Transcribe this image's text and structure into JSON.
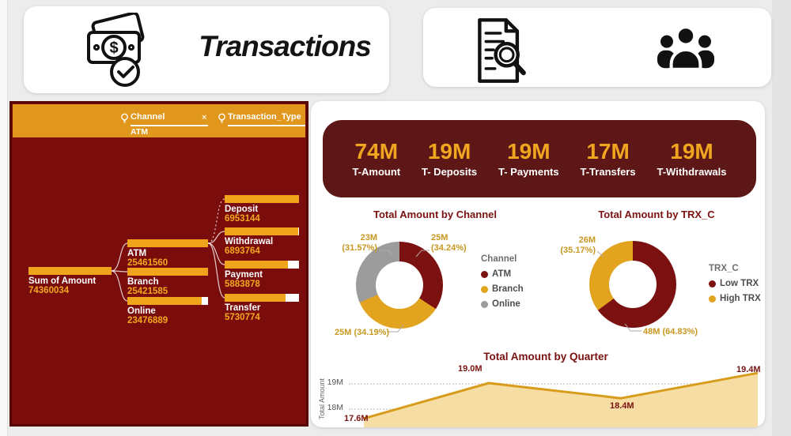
{
  "header": {
    "title": "Transactions"
  },
  "tree": {
    "levels": [
      {
        "label": "Channel",
        "selected": "ATM",
        "clear_label": "×"
      },
      {
        "label": "Transaction_Type"
      }
    ],
    "root": {
      "label": "Sum of Amount",
      "value": "74360034",
      "fill": 100
    },
    "children": [
      {
        "label": "ATM",
        "value": "25461560",
        "fill": 100
      },
      {
        "label": "Branch",
        "value": "25421585",
        "fill": 99.8
      },
      {
        "label": "Online",
        "value": "23476889",
        "fill": 92
      }
    ],
    "grandchildren": [
      {
        "label": "Deposit",
        "value": "6953144",
        "fill": 100
      },
      {
        "label": "Withdrawal",
        "value": "6893764",
        "fill": 99
      },
      {
        "label": "Payment",
        "value": "5883878",
        "fill": 85
      },
      {
        "label": "Transfer",
        "value": "5730774",
        "fill": 82
      }
    ]
  },
  "kpis": [
    {
      "value": "74M",
      "label": "T-Amount"
    },
    {
      "value": "19M",
      "label": "T- Deposits"
    },
    {
      "value": "19M",
      "label": "T- Payments"
    },
    {
      "value": "17M",
      "label": "T-Transfers"
    },
    {
      "value": "19M",
      "label": "T-Withdrawals"
    }
  ],
  "colors": {
    "panel_red": "#7a0c0c",
    "banner_maroon": "#5e1717",
    "header_gold": "#e0971b",
    "bar_gold": "#f0a41c",
    "maroon_slice": "#7b1111",
    "gold_slice": "#e2a41f",
    "gray_slice": "#9c9c9c",
    "area_line": "#d89c1c",
    "area_fill": "#f6dda4"
  },
  "chart_data": [
    {
      "type": "donut",
      "title": "Total Amount by Channel",
      "legend_title": "Channel",
      "legend_position": "right",
      "slices": [
        {
          "label": "ATM",
          "pct": 34.24,
          "data_label": "25M (34.24%)",
          "color": "#7b1111"
        },
        {
          "label": "Branch",
          "pct": 34.19,
          "data_label": "25M (34.19%)",
          "color": "#e2a41f"
        },
        {
          "label": "Online",
          "pct": 31.57,
          "data_label": "23M (31.57%)",
          "color": "#9c9c9c"
        }
      ]
    },
    {
      "type": "donut",
      "title": "Total Amount by TRX_C",
      "legend_title": "TRX_C",
      "legend_position": "right",
      "slices": [
        {
          "label": "Low TRX",
          "pct": 64.83,
          "data_label": "48M (64.83%)",
          "color": "#7b1111"
        },
        {
          "label": "High TRX",
          "pct": 35.17,
          "data_label": "26M (35.17%)",
          "color": "#e2a41f"
        }
      ]
    },
    {
      "type": "area",
      "title": "Total Amount by Quarter",
      "ylabel": "Total Amount",
      "yticks": [
        "19M",
        "18M"
      ],
      "ylim": [
        17.4,
        19.6
      ],
      "grid": "dotted-horizontal",
      "x_axis_labels_visible": false,
      "points": [
        {
          "label": "17.6M",
          "value": 17.6
        },
        {
          "label": "19.0M",
          "value": 19.0
        },
        {
          "label": "18.4M",
          "value": 18.4
        },
        {
          "label": "19.4M",
          "value": 19.4
        }
      ]
    }
  ]
}
